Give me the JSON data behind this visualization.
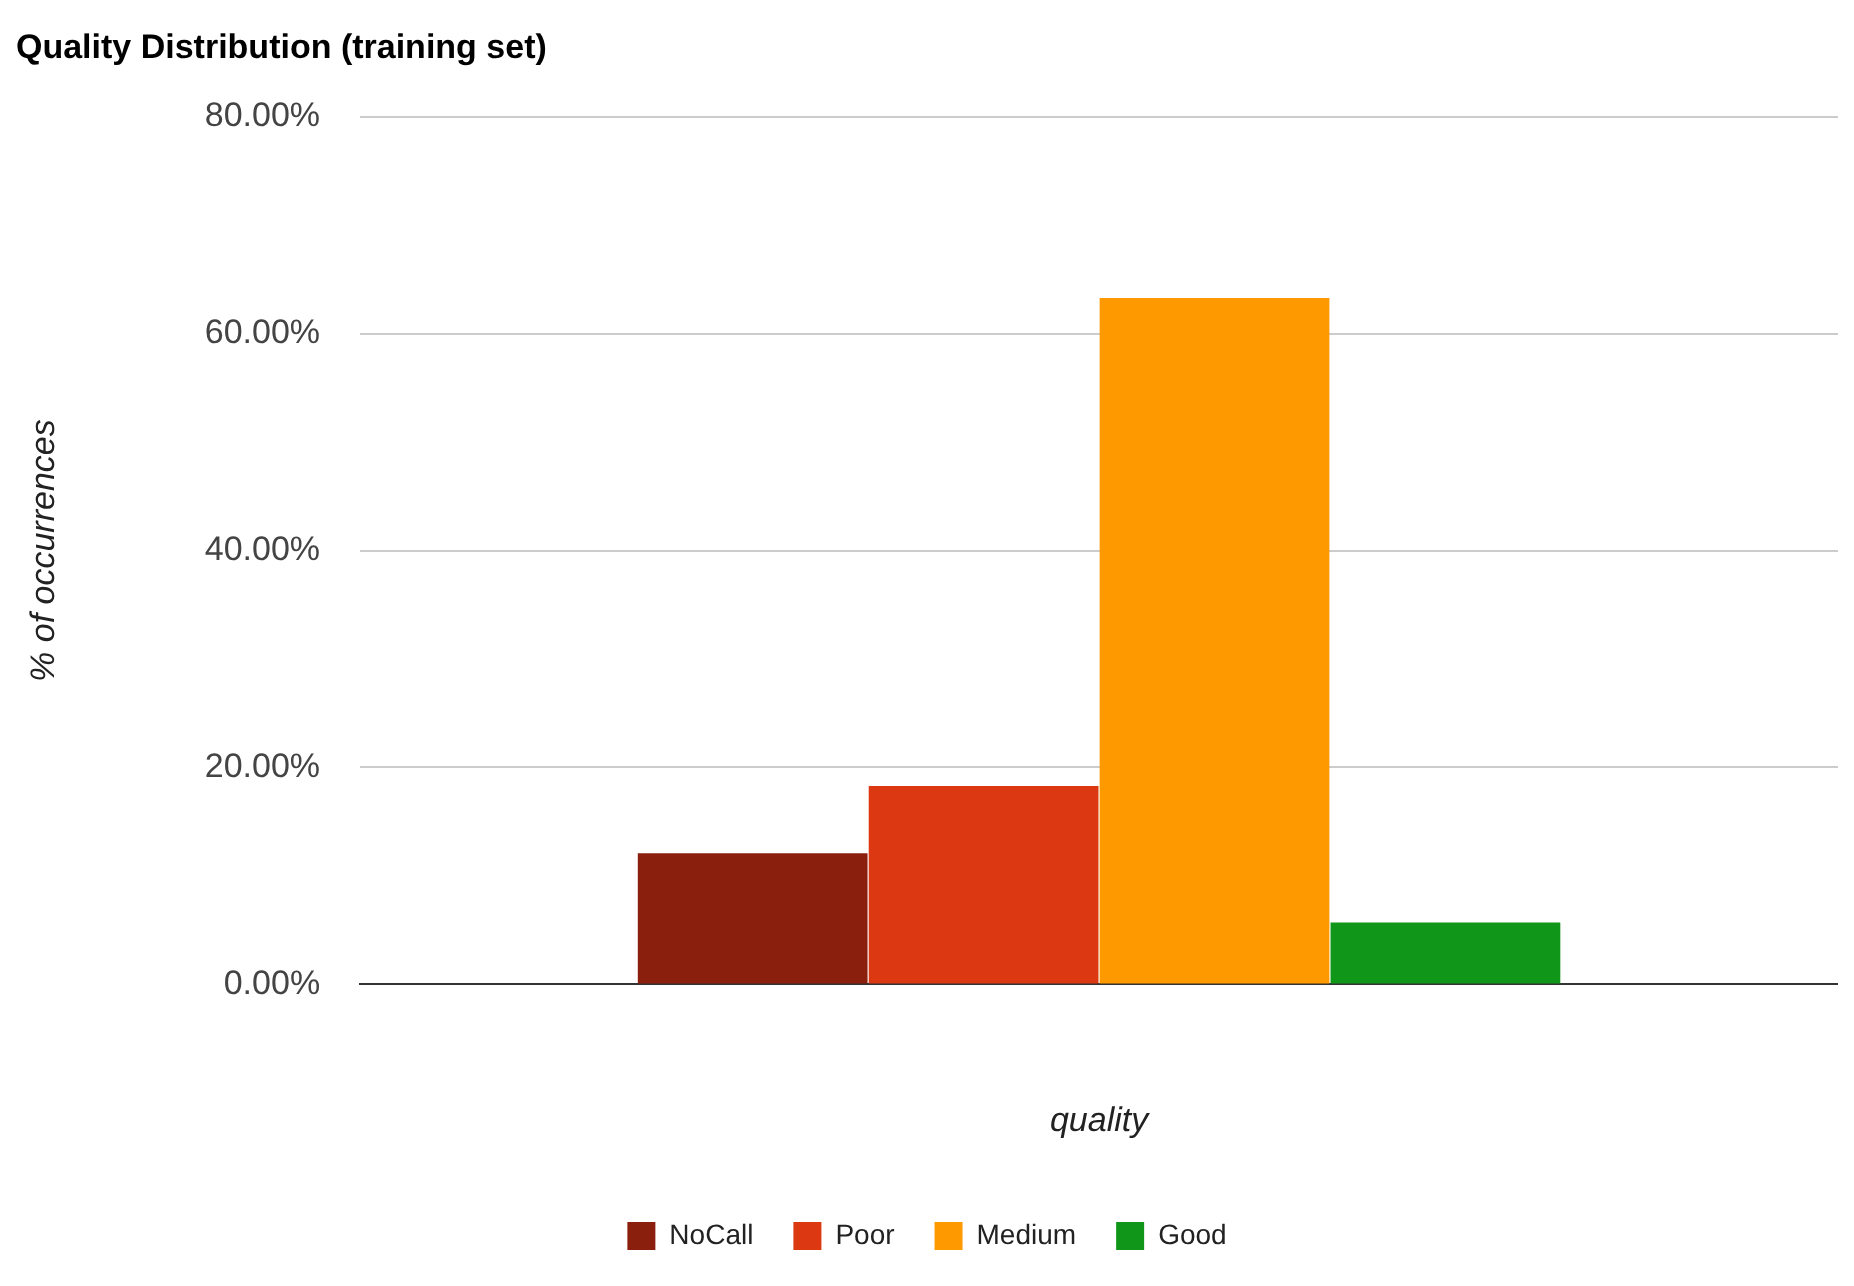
{
  "chart_data": {
    "type": "bar",
    "title": "Quality Distribution (training set)",
    "xlabel": "quality",
    "ylabel": "% of occurrences",
    "categories": [
      null
    ],
    "series": [
      {
        "name": "NoCall",
        "color": "#8a1f0e",
        "values": [
          12.1
        ]
      },
      {
        "name": "Poor",
        "color": "#dc3912",
        "values": [
          18.3
        ]
      },
      {
        "name": "Medium",
        "color": "#ff9900",
        "values": [
          63.3
        ]
      },
      {
        "name": "Good",
        "color": "#109618",
        "values": [
          5.7
        ]
      }
    ],
    "ylim": [
      0,
      80
    ],
    "yticks": [
      {
        "value": 0,
        "label": "0.00%"
      },
      {
        "value": 20,
        "label": "20.00%"
      },
      {
        "value": 40,
        "label": "40.00%"
      },
      {
        "value": 60,
        "label": "60.00%"
      },
      {
        "value": 80,
        "label": "80.00%"
      }
    ],
    "grid": "y",
    "legend": "bottom"
  }
}
